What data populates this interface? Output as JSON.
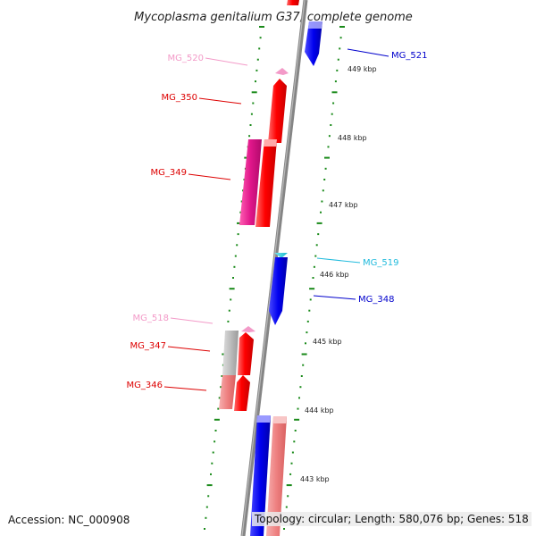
{
  "title": "Mycoplasma genitalium G37, complete genome",
  "footer": {
    "accession": "Accession: NC_000908",
    "topology": "Topology: circular; Length: 580,076 bp; Genes: 518"
  },
  "kbp_ticks": [
    "449 kbp",
    "448 kbp",
    "447 kbp",
    "446 kbp",
    "445 kbp",
    "444 kbp",
    "443 kbp"
  ],
  "genes": [
    {
      "id": "MG_520",
      "color": "#f39ac8",
      "side": "left"
    },
    {
      "id": "MG_350",
      "color": "#dd0000",
      "side": "left"
    },
    {
      "id": "MG_349",
      "color": "#dd0000",
      "side": "left"
    },
    {
      "id": "MG_518",
      "color": "#f39ac8",
      "side": "left"
    },
    {
      "id": "MG_347",
      "color": "#dd0000",
      "side": "left"
    },
    {
      "id": "MG_346",
      "color": "#dd0000",
      "side": "left"
    },
    {
      "id": "MG_521",
      "color": "#0000cc",
      "side": "right"
    },
    {
      "id": "MG_519",
      "color": "#22bbdd",
      "side": "right"
    },
    {
      "id": "MG_348",
      "color": "#0000cc",
      "side": "right"
    }
  ],
  "colors": {
    "backbone": "#808080",
    "tick_dots": "#1a8a1a",
    "red_gene": "#ff0000",
    "pink_gene": "#e8178a",
    "blue_gene": "#0000ee",
    "light_red_gene": "#ef8080",
    "grey_gene": "#b8b8b8",
    "cyan_gene": "#22ccdd"
  }
}
